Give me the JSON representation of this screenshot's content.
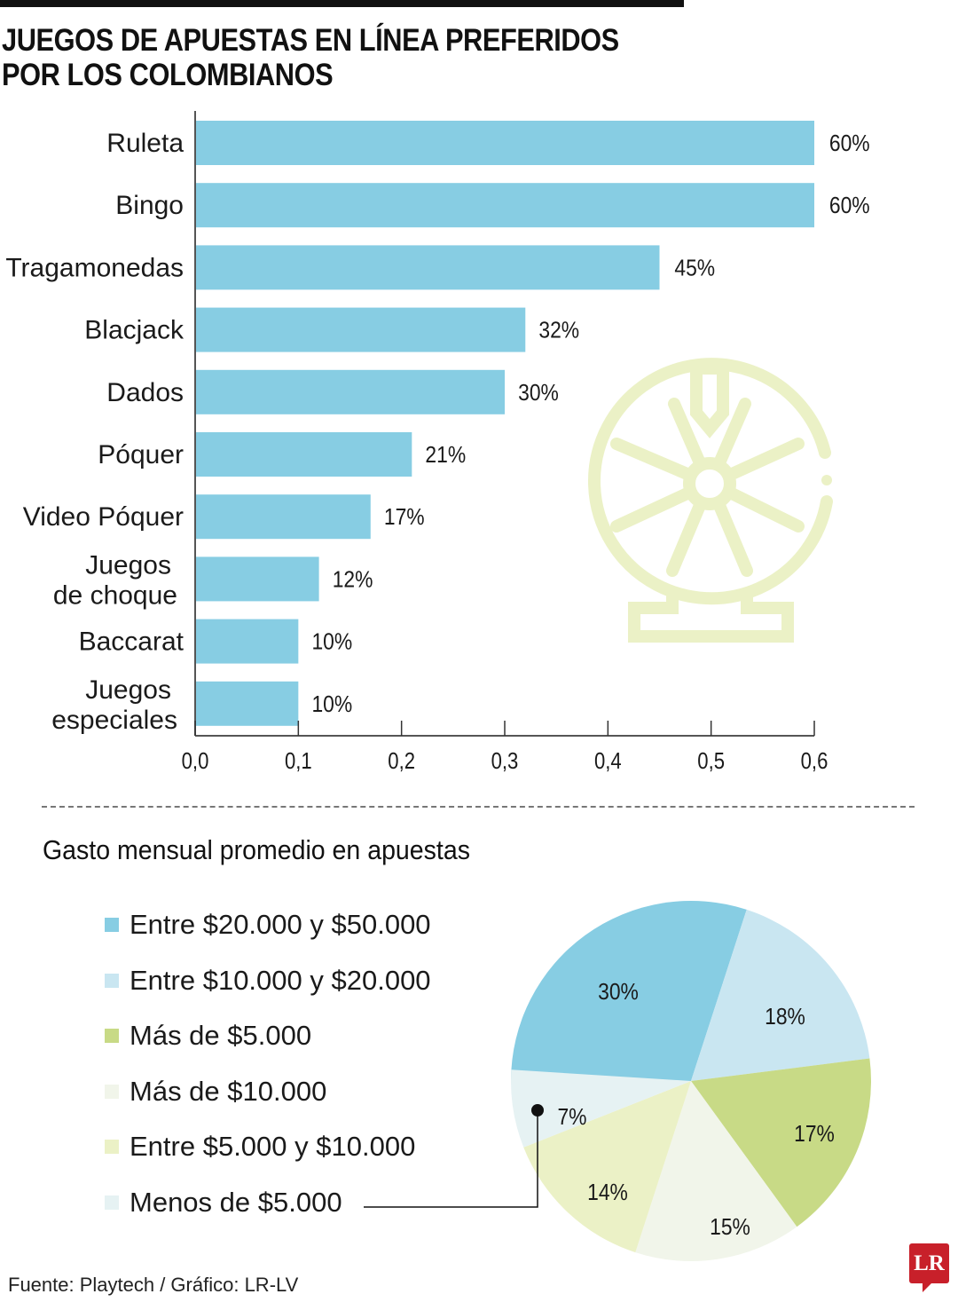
{
  "title": {
    "line1": "JUEGOS DE APUESTAS EN LÍNEA PREFERIDOS",
    "line2": "POR LOS COLOMBIANOS"
  },
  "bar_chart": {
    "bar_color": "#87cde3",
    "categories": [
      {
        "label_lines": [
          "Ruleta"
        ],
        "value": 0.6,
        "value_label": "60%"
      },
      {
        "label_lines": [
          "Bingo"
        ],
        "value": 0.6,
        "value_label": "60%"
      },
      {
        "label_lines": [
          "Tragamonedas"
        ],
        "value": 0.45,
        "value_label": "45%"
      },
      {
        "label_lines": [
          "Blacjack"
        ],
        "value": 0.32,
        "value_label": "32%"
      },
      {
        "label_lines": [
          "Dados"
        ],
        "value": 0.3,
        "value_label": "30%"
      },
      {
        "label_lines": [
          "Póquer"
        ],
        "value": 0.21,
        "value_label": "21%"
      },
      {
        "label_lines": [
          "Video Póquer"
        ],
        "value": 0.17,
        "value_label": "17%"
      },
      {
        "label_lines": [
          "Juegos",
          "de choque"
        ],
        "value": 0.12,
        "value_label": "12%"
      },
      {
        "label_lines": [
          "Baccarat"
        ],
        "value": 0.1,
        "value_label": "10%"
      },
      {
        "label_lines": [
          "Juegos",
          "especiales"
        ],
        "value": 0.1,
        "value_label": "10%"
      }
    ],
    "ticks": [
      "0,0",
      "0,1",
      "0,2",
      "0,3",
      "0,4",
      "0,5",
      "0,6"
    ]
  },
  "pie_section": {
    "subtitle": "Gasto mensual promedio en apuestas",
    "legend": [
      {
        "label": "Entre $20.000 y $50.000",
        "color": "#87cde3"
      },
      {
        "label": "Entre $10.000 y $20.000",
        "color": "#c9e6f1"
      },
      {
        "label": "Más de $5.000",
        "color": "#c8da86"
      },
      {
        "label": "Más de $10.000",
        "color": "#f1f5ea"
      },
      {
        "label": "Entre $5.000 y $10.000",
        "color": "#ebf1c6"
      },
      {
        "label": "Menos de $5.000",
        "color": "#e6f2f3"
      }
    ]
  },
  "footer": {
    "source": "Fuente: Playtech / Gráfico: LR-LV",
    "logo": "LR"
  },
  "chart_data": [
    {
      "type": "bar",
      "orientation": "horizontal",
      "title": "JUEGOS DE APUESTAS EN LÍNEA PREFERIDOS POR LOS COLOMBIANOS",
      "categories": [
        "Ruleta",
        "Bingo",
        "Tragamonedas",
        "Blacjack",
        "Dados",
        "Póquer",
        "Video Póquer",
        "Juegos de choque",
        "Baccarat",
        "Juegos especiales"
      ],
      "values": [
        0.6,
        0.6,
        0.45,
        0.32,
        0.3,
        0.21,
        0.17,
        0.12,
        0.1,
        0.1
      ],
      "data_labels": [
        "60%",
        "60%",
        "45%",
        "32%",
        "30%",
        "21%",
        "17%",
        "12%",
        "10%",
        "10%"
      ],
      "xlabel": "",
      "ylabel": "",
      "xlim": [
        0,
        0.6
      ],
      "xticks": [
        "0,0",
        "0,1",
        "0,2",
        "0,3",
        "0,4",
        "0,5",
        "0,6"
      ],
      "grid": false,
      "legend": "none"
    },
    {
      "type": "pie",
      "title": "Gasto mensual promedio en apuestas",
      "categories": [
        "Entre $20.000 y $50.000",
        "Entre $10.000 y $20.000",
        "Más de $5.000",
        "Más de $10.000",
        "Entre $5.000 y $10.000",
        "Menos de $5.000"
      ],
      "values": [
        30,
        18,
        17,
        15,
        14,
        7
      ],
      "data_labels": [
        "30%",
        "18%",
        "17%",
        "15%",
        "14%",
        "7%"
      ],
      "colors": [
        "#87cde3",
        "#c9e6f1",
        "#c8da86",
        "#f1f5ea",
        "#ebf1c6",
        "#e6f2f3"
      ],
      "legend": "left"
    }
  ]
}
